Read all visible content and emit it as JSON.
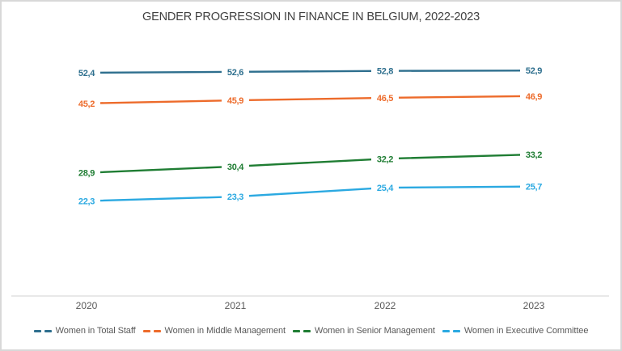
{
  "title": "GENDER PROGRESSION IN FINANCE IN BELGIUM, 2022-2023",
  "frame": {
    "background": "#ffffff",
    "border_color": "#d8d8d8"
  },
  "chart_data": {
    "type": "line",
    "title": "GENDER PROGRESSION IN FINANCE IN BELGIUM, 2022-2023",
    "categories": [
      "2020",
      "2021",
      "2022",
      "2023"
    ],
    "series": [
      {
        "name": "Women in Total Staff",
        "color": "#2E6F8E",
        "values": [
          52.4,
          52.6,
          52.8,
          52.9
        ],
        "labels": [
          "52,4",
          "52,6",
          "52,8",
          "52,9"
        ]
      },
      {
        "name": "Women in Middle Management",
        "color": "#ED6B2B",
        "values": [
          45.2,
          45.9,
          46.5,
          46.9
        ],
        "labels": [
          "45,2",
          "45,9",
          "46,5",
          "46,9"
        ]
      },
      {
        "name": "Women in Senior Management",
        "color": "#1F7D33",
        "values": [
          28.9,
          30.4,
          32.2,
          33.2
        ],
        "labels": [
          "28,9",
          "30,4",
          "32,2",
          "33,2"
        ]
      },
      {
        "name": "Women in Executive Committee",
        "color": "#2BA9E1",
        "values": [
          22.3,
          23.3,
          25.4,
          25.7
        ],
        "labels": [
          "22,3",
          "23,3",
          "25,4",
          "25,7"
        ]
      }
    ],
    "ylim": [
      0,
      60
    ],
    "grid": false,
    "legend_position": "bottom",
    "decimal_separator": ",",
    "axis_line_color": "#d9d9d9",
    "tick_label_color": "#595959",
    "title_color": "#404040"
  }
}
